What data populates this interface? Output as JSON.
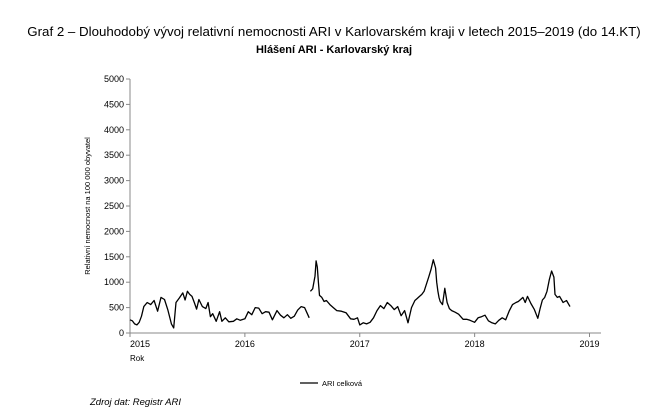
{
  "caption": "Graf 2 – Dlouhodobý vývoj relativní nemocnosti ARI v Karlovarském kraji v letech 2015–2019 (do 14.KT)",
  "source": "Zdroj dat: Registr ARI",
  "chart_data": {
    "type": "line",
    "title": "Hlášení ARI  -  Karlovarský kraj",
    "xlabel": "Rok",
    "ylabel": "Relativní nemocnost na 100 000 obyvatel",
    "ylim": [
      0,
      5000
    ],
    "yticks": [
      "0",
      "500",
      "1000",
      "1500",
      "2000",
      "2500",
      "3000",
      "3500",
      "4000",
      "4500",
      "5000"
    ],
    "xticks": [
      "2015",
      "2016",
      "2017",
      "2018",
      "2019"
    ],
    "xlim": [
      2015,
      2019.1
    ],
    "grid": false,
    "legend": "bottom-center",
    "series": [
      {
        "name": "ARI celková",
        "color": "#000000",
        "x": [
          2015.0,
          2015.02,
          2015.04,
          2015.06,
          2015.08,
          2015.1,
          2015.12,
          2015.15,
          2015.18,
          2015.21,
          2015.24,
          2015.27,
          2015.3,
          2015.33,
          2015.36,
          2015.38,
          2015.4,
          2015.43,
          2015.46,
          2015.48,
          2015.5,
          2015.52,
          2015.54,
          2015.56,
          2015.58,
          2015.6,
          2015.63,
          2015.66,
          2015.68,
          2015.7,
          2015.72,
          2015.75,
          2015.78,
          2015.8,
          2015.83,
          2015.86,
          2015.9,
          2015.93,
          2015.96,
          2016.0,
          2016.03,
          2016.06,
          2016.09,
          2016.12,
          2016.15,
          2016.18,
          2016.21,
          2016.24,
          2016.28,
          2016.31,
          2016.34,
          2016.37,
          2016.4,
          2016.43,
          2016.46,
          2016.49,
          2016.52,
          2016.54,
          2016.56,
          null,
          2016.57,
          2016.59,
          2016.61,
          2016.62,
          2016.63,
          2016.64,
          2016.65,
          2016.67,
          2016.69,
          2016.71,
          2016.74,
          2016.77,
          2016.8,
          2016.84,
          2016.88,
          2016.92,
          2016.95,
          2016.98,
          2017.0,
          2017.03,
          2017.06,
          2017.09,
          2017.12,
          2017.15,
          2017.18,
          2017.21,
          2017.24,
          2017.27,
          2017.3,
          2017.33,
          2017.36,
          2017.39,
          2017.42,
          2017.45,
          2017.48,
          2017.5,
          2017.52,
          2017.54,
          2017.56,
          2017.58,
          2017.6,
          2017.62,
          2017.64,
          2017.66,
          2017.67,
          2017.68,
          2017.69,
          2017.7,
          2017.72,
          2017.74,
          2017.76,
          2017.78,
          2017.8,
          2017.83,
          2017.86,
          2017.9,
          2017.93,
          2017.96,
          2018.0,
          2018.03,
          2018.06,
          2018.09,
          2018.12,
          2018.15,
          2018.18,
          2018.21,
          2018.24,
          2018.27,
          2018.3,
          2018.33,
          2018.36,
          2018.38,
          2018.4,
          2018.42,
          2018.44,
          2018.46,
          2018.49,
          2018.52,
          2018.55,
          2018.57,
          2018.59,
          2018.61,
          2018.63,
          2018.65,
          2018.67,
          2018.69,
          2018.7,
          2018.72,
          2018.74,
          2018.77,
          2018.8,
          2018.83
        ],
        "y": [
          260,
          240,
          180,
          160,
          210,
          330,
          520,
          600,
          560,
          640,
          430,
          700,
          660,
          450,
          180,
          100,
          600,
          690,
          790,
          650,
          820,
          760,
          720,
          600,
          470,
          660,
          520,
          480,
          600,
          320,
          380,
          230,
          420,
          230,
          300,
          220,
          230,
          280,
          250,
          280,
          420,
          360,
          500,
          490,
          380,
          420,
          410,
          260,
          440,
          350,
          300,
          360,
          290,
          330,
          450,
          520,
          500,
          400,
          300,
          null,
          820,
          870,
          1120,
          1420,
          1300,
          1000,
          740,
          700,
          620,
          640,
          560,
          500,
          440,
          430,
          400,
          280,
          270,
          300,
          160,
          200,
          180,
          210,
          300,
          440,
          540,
          480,
          600,
          540,
          460,
          520,
          340,
          440,
          200,
          500,
          640,
          680,
          720,
          760,
          820,
          960,
          1100,
          1250,
          1440,
          1280,
          1000,
          820,
          700,
          620,
          560,
          880,
          600,
          480,
          440,
          410,
          370,
          270,
          270,
          250,
          210,
          300,
          320,
          350,
          240,
          200,
          180,
          250,
          300,
          260,
          430,
          560,
          600,
          620,
          660,
          700,
          600,
          720,
          580,
          460,
          290,
          480,
          650,
          700,
          820,
          1050,
          1220,
          1100,
          760,
          700,
          720,
          600,
          640,
          520
        ]
      }
    ]
  }
}
